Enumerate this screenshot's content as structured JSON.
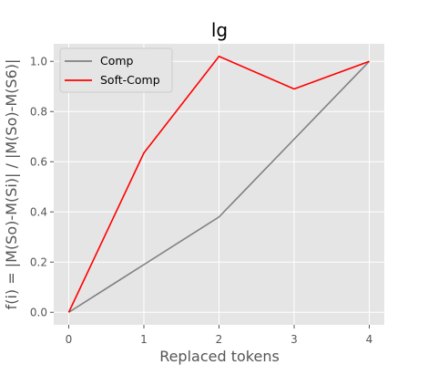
{
  "chart_data": {
    "type": "line",
    "title": "lg",
    "xlabel": "Replaced tokens",
    "ylabel": "f(i) = |M(So)-M(Si)| / |M(So)-M(S6)|",
    "x": [
      0,
      1,
      2,
      3,
      4
    ],
    "xticks": [
      0,
      1,
      2,
      3,
      4
    ],
    "yticks": [
      0.0,
      0.2,
      0.4,
      0.6,
      0.8,
      1.0
    ],
    "xlim": [
      -0.2,
      4.2
    ],
    "ylim": [
      -0.05,
      1.07
    ],
    "grid": true,
    "legend_position": "top-left",
    "background": "#e5e5e5",
    "series": [
      {
        "name": "Comp",
        "color": "#808080",
        "values": [
          0.0,
          0.19,
          0.38,
          0.69,
          1.0
        ]
      },
      {
        "name": "Soft-Comp",
        "color": "#ff0000",
        "values": [
          0.0,
          0.635,
          1.02,
          0.89,
          1.0
        ]
      }
    ]
  }
}
